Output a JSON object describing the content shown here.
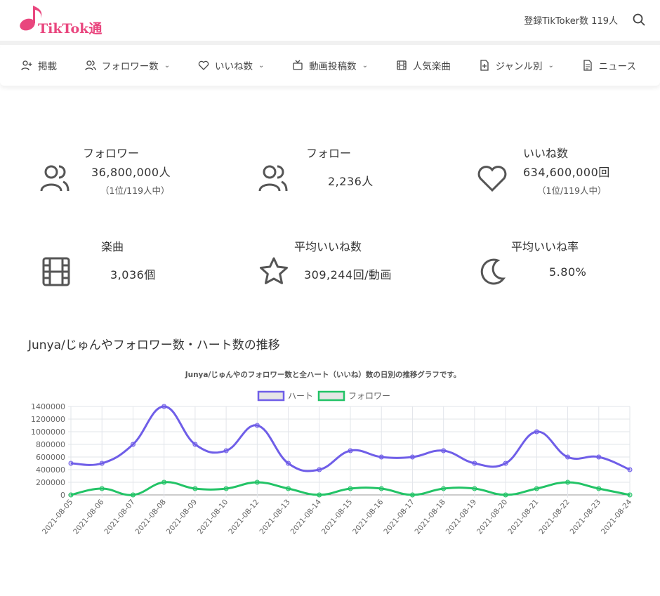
{
  "header": {
    "logo_text": "TikTok通",
    "tiktoker_count": "登録TikToker数 119人"
  },
  "nav": [
    {
      "label": "掲載",
      "icon": "user-plus-icon",
      "dropdown": false
    },
    {
      "label": "フォロワー数",
      "icon": "users-icon",
      "dropdown": true
    },
    {
      "label": "いいね数",
      "icon": "heart-icon",
      "dropdown": true
    },
    {
      "label": "動画投稿数",
      "icon": "tv-icon",
      "dropdown": true
    },
    {
      "label": "人気楽曲",
      "icon": "film-icon",
      "dropdown": false
    },
    {
      "label": "ジャンル別",
      "icon": "file-plus-icon",
      "dropdown": true
    },
    {
      "label": "ニュース",
      "icon": "document-icon",
      "dropdown": false
    }
  ],
  "stats": {
    "followers": {
      "label": "フォロワー",
      "value": "36,800,000人",
      "rank": "（1位/119人中）"
    },
    "following": {
      "label": "フォロー",
      "value": "2,236人"
    },
    "likes": {
      "label": "いいね数",
      "value": "634,600,000回",
      "rank": "（1位/119人中）"
    },
    "songs": {
      "label": "楽曲",
      "value": "3,036個"
    },
    "avg_likes": {
      "label": "平均いいね数",
      "value": "309,244回/動画"
    },
    "avg_rate": {
      "label": "平均いいね率",
      "value": "5.80%"
    }
  },
  "section_title": "Junya/じゅんやフォロワー数・ハート数の推移",
  "chart_data": {
    "type": "line",
    "title": "Junya/じゅんやのフォロワー数と全ハート（いいね）数の日別の推移グラフです。",
    "legend_position": "top",
    "grid": true,
    "ylim": [
      0,
      1400000
    ],
    "yticks": [
      0,
      200000,
      400000,
      600000,
      800000,
      1000000,
      1200000,
      1400000
    ],
    "x": [
      "2021-08-05",
      "2021-08-06",
      "2021-08-07",
      "2021-08-08",
      "2021-08-09",
      "2021-08-10",
      "2021-08-12",
      "2021-08-13",
      "2021-08-14",
      "2021-08-15",
      "2021-08-16",
      "2021-08-17",
      "2021-08-18",
      "2021-08-19",
      "2021-08-20",
      "2021-08-21",
      "2021-08-22",
      "2021-08-23",
      "2021-08-24"
    ],
    "series": [
      {
        "name": "ハート",
        "color": "#6f5ee8",
        "values": [
          500000,
          500000,
          800000,
          1400000,
          800000,
          700000,
          1100000,
          500000,
          400000,
          700000,
          600000,
          600000,
          700000,
          500000,
          500000,
          1000000,
          600000,
          600000,
          400000
        ]
      },
      {
        "name": "フォロワー",
        "color": "#22c366",
        "values": [
          0,
          100000,
          0,
          200000,
          100000,
          100000,
          200000,
          100000,
          0,
          100000,
          100000,
          0,
          100000,
          100000,
          0,
          100000,
          200000,
          100000,
          0
        ]
      }
    ]
  }
}
